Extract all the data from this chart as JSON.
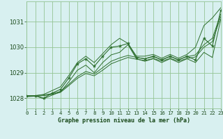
{
  "title": "Graphe pression niveau de la mer (hPa)",
  "x_labels": [
    "0",
    "1",
    "2",
    "3",
    "4",
    "5",
    "6",
    "7",
    "8",
    "9",
    "10",
    "11",
    "12",
    "13",
    "14",
    "15",
    "16",
    "17",
    "18",
    "19",
    "20",
    "21",
    "22",
    "23"
  ],
  "xlim": [
    0,
    23
  ],
  "ylim": [
    1027.6,
    1031.8
  ],
  "yticks": [
    1028,
    1029,
    1030,
    1031
  ],
  "background_color": "#d8f0f0",
  "grid_color": "#94c494",
  "line_color": "#2d6e2d",
  "label_color": "#1a4a1a",
  "series_zigzag": [
    1028.1,
    1028.1,
    1028.0,
    1028.2,
    1028.35,
    1028.8,
    1029.35,
    1029.55,
    1029.25,
    1029.65,
    1030.0,
    1030.05,
    1030.15,
    1029.6,
    1029.55,
    1029.65,
    1029.5,
    1029.65,
    1029.5,
    1029.65,
    1029.5,
    1030.35,
    1030.05,
    1031.45
  ],
  "series_upper": [
    1028.1,
    1028.1,
    1028.15,
    1028.3,
    1028.45,
    1028.9,
    1029.4,
    1029.65,
    1029.4,
    1029.75,
    1030.1,
    1030.35,
    1030.15,
    1029.65,
    1029.65,
    1029.72,
    1029.57,
    1029.72,
    1029.57,
    1029.72,
    1030.0,
    1030.85,
    1031.15,
    1031.55
  ],
  "series_lower": [
    1028.1,
    1028.1,
    1027.98,
    1028.12,
    1028.25,
    1028.65,
    1029.1,
    1029.3,
    1029.0,
    1029.4,
    1029.7,
    1029.8,
    1030.1,
    1029.55,
    1029.45,
    1029.55,
    1029.4,
    1029.55,
    1029.4,
    1029.55,
    1029.4,
    1029.8,
    1029.6,
    1031.1
  ],
  "series_trend1": [
    1028.08,
    1028.1,
    1028.13,
    1028.18,
    1028.27,
    1028.55,
    1028.85,
    1029.05,
    1028.95,
    1029.2,
    1029.45,
    1029.58,
    1029.68,
    1029.6,
    1029.55,
    1029.63,
    1029.52,
    1029.63,
    1029.52,
    1029.63,
    1029.7,
    1030.1,
    1030.35,
    1031.3
  ],
  "series_trend2": [
    1028.06,
    1028.08,
    1028.1,
    1028.15,
    1028.23,
    1028.5,
    1028.78,
    1028.97,
    1028.88,
    1029.1,
    1029.35,
    1029.48,
    1029.6,
    1029.53,
    1029.48,
    1029.56,
    1029.46,
    1029.56,
    1029.46,
    1029.56,
    1029.62,
    1030.0,
    1030.22,
    1031.2
  ]
}
